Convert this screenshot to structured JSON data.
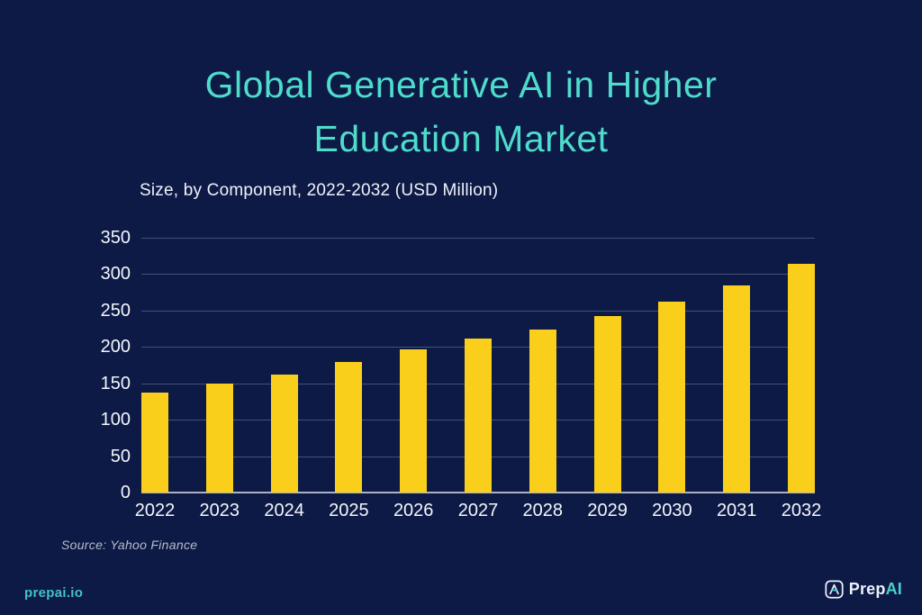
{
  "header": {
    "title_lines": [
      "Global Generative AI in Higher",
      "Education Market"
    ],
    "subtitle": "Size, by Component, 2022-2032 (USD Million)"
  },
  "chart_data": {
    "type": "bar",
    "title": "Global Generative AI in Higher Education Market",
    "subtitle": "Size, by Component, 2022-2032 (USD Million)",
    "categories": [
      "2022",
      "2023",
      "2024",
      "2025",
      "2026",
      "2027",
      "2028",
      "2029",
      "2030",
      "2031",
      "2032"
    ],
    "values": [
      137,
      150,
      162,
      179,
      197,
      212,
      224,
      243,
      262,
      285,
      314
    ],
    "xlabel": "",
    "ylabel": "",
    "ylim": [
      0,
      350
    ],
    "ytick_step": 50,
    "grid": true,
    "legend": false,
    "bar_color": "#F9CF1B"
  },
  "footer": {
    "source": "Source: Yahoo Finance",
    "site": "prepai.io",
    "logo_prefix": "Prep",
    "logo_suffix": "AI",
    "logo_icon": "prepai-monogram-icon"
  },
  "colors": {
    "background": "#0D1A46",
    "title_teal": "#4EDCCB",
    "bar_yellow": "#F9CF1B",
    "axis_text": "#F4F6FA",
    "source_text": "#B6BCCA",
    "footer_teal": "#45C1C4",
    "logo_ai_teal": "#49D2C6"
  }
}
